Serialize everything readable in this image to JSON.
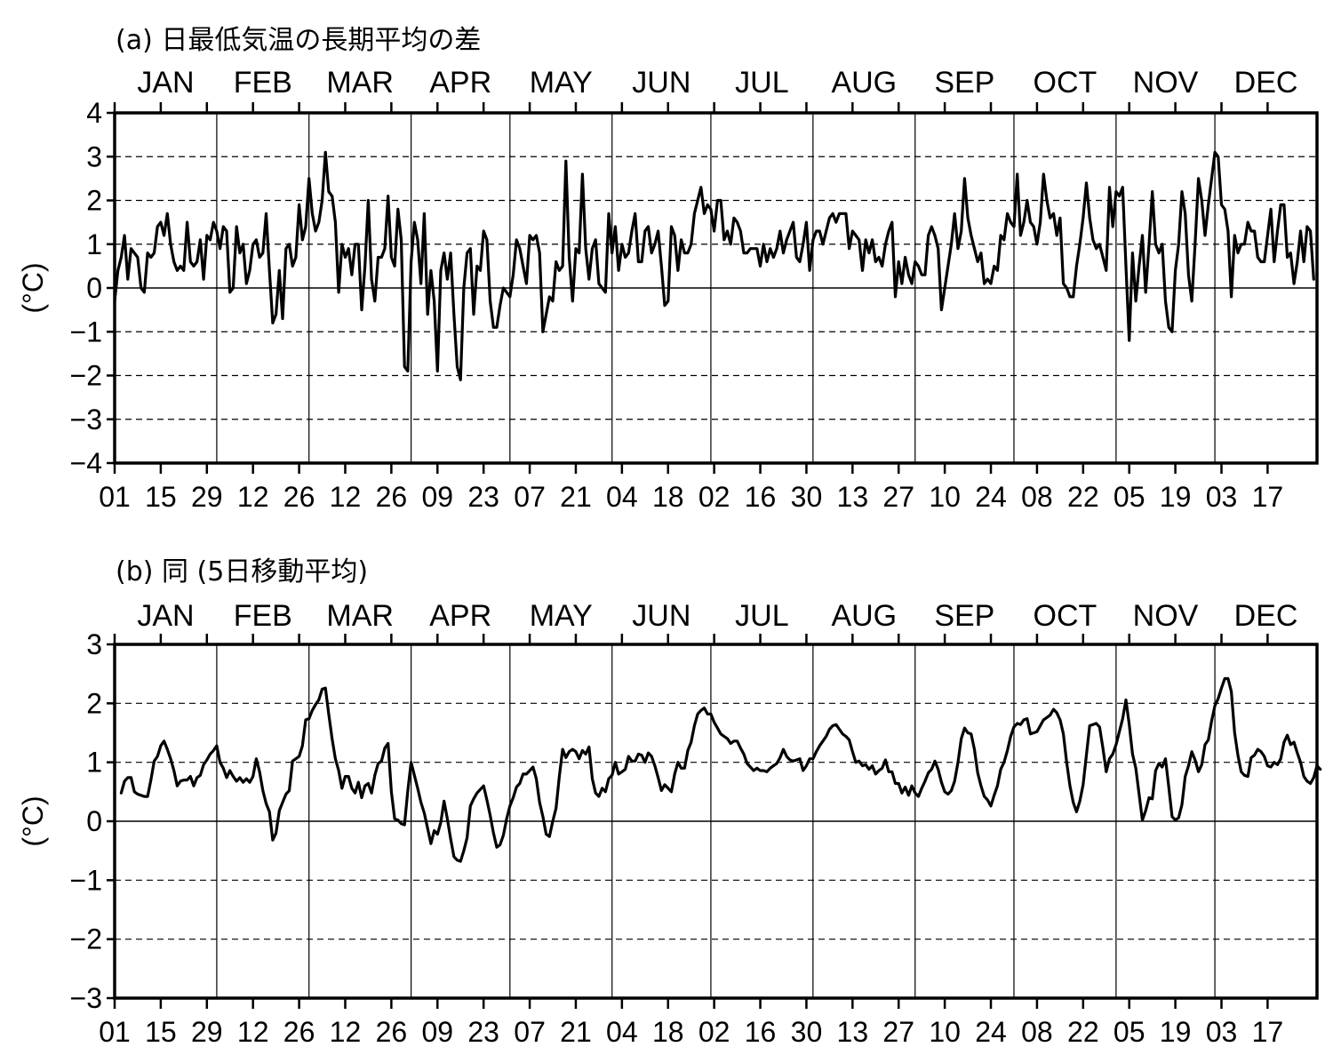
{
  "chart_data": [
    {
      "type": "line",
      "title": "(a) 日最低気温の長期平均の差",
      "ylabel": "(°C)",
      "ylim": [
        -4,
        4
      ],
      "yticks": [
        -4,
        -3,
        -2,
        -1,
        0,
        1,
        2,
        3,
        4
      ],
      "months": [
        "JAN",
        "FEB",
        "MAR",
        "APR",
        "MAY",
        "JUN",
        "JUL",
        "AUG",
        "SEP",
        "OCT",
        "NOV",
        "DEC"
      ],
      "xtick_labels": [
        "01",
        "15",
        "29",
        "12",
        "26",
        "12",
        "26",
        "09",
        "23",
        "07",
        "21",
        "04",
        "18",
        "02",
        "16",
        "30",
        "13",
        "27",
        "10",
        "24",
        "08",
        "22",
        "05",
        "19",
        "03",
        "17"
      ],
      "grid": "dashed horizontal lines, solid vertical month lines",
      "series": [
        {
          "values": [
            -0.3,
            0.4,
            0.7,
            1.2,
            0.2,
            0.9,
            0.8,
            0.7,
            0.0,
            -0.1,
            0.8,
            0.7,
            0.8,
            1.4,
            1.5,
            1.2,
            1.7,
            1.0,
            0.6,
            0.4,
            0.5,
            0.4,
            1.5,
            0.6,
            0.5,
            0.6,
            1.1,
            0.2,
            1.2,
            1.1,
            1.5,
            1.3,
            0.9,
            1.4,
            1.3,
            -0.1,
            0.0,
            1.4,
            0.8,
            1.0,
            0.1,
            0.4,
            1.0,
            1.1,
            0.7,
            0.8,
            1.7,
            0.4,
            -0.8,
            -0.6,
            0.4,
            -0.7,
            0.9,
            1.0,
            0.5,
            0.7,
            1.9,
            1.1,
            1.4,
            2.5,
            1.7,
            1.3,
            1.5,
            2.0,
            3.1,
            2.2,
            2.1,
            1.5,
            -0.1,
            1.0,
            0.7,
            0.9,
            0.3,
            1.0,
            1.0,
            -0.5,
            0.5,
            2.0,
            0.2,
            -0.3,
            0.7,
            0.7,
            0.9,
            2.1,
            0.7,
            0.5,
            1.8,
            1.1,
            -1.8,
            -1.9,
            0.6,
            1.5,
            1.1,
            0.1,
            1.7,
            -0.6,
            0.4,
            -0.3,
            -1.9,
            0.4,
            0.8,
            0.2,
            0.8,
            -0.6,
            -1.8,
            -2.1,
            0.0,
            0.8,
            0.9,
            -0.6,
            0.5,
            0.4,
            1.3,
            1.1,
            -0.3,
            -0.9,
            -0.9,
            -0.4,
            0.0,
            -0.1,
            -0.2,
            0.3,
            1.1,
            0.9,
            0.5,
            0.1,
            1.2,
            1.1,
            1.2,
            0.8,
            -1.0,
            -0.6,
            -0.2,
            -0.3,
            0.6,
            0.4,
            0.5,
            2.9,
            0.7,
            -0.3,
            0.9,
            0.8,
            2.6,
            0.9,
            0.2,
            0.9,
            1.1,
            0.1,
            0.0,
            -0.1,
            1.7,
            0.8,
            1.4,
            0.4,
            1.0,
            0.7,
            0.8,
            1.3,
            1.7,
            0.6,
            0.6,
            1.3,
            1.4,
            0.8,
            1.0,
            1.3,
            0.5,
            -0.4,
            -0.3,
            1.4,
            1.2,
            0.4,
            1.1,
            0.8,
            0.8,
            1.0,
            1.7,
            2.0,
            2.3,
            1.7,
            1.9,
            1.8,
            1.3,
            2.0,
            2.0,
            1.1,
            1.3,
            1.0,
            1.6,
            1.5,
            1.3,
            0.8,
            0.8,
            0.9,
            0.9,
            0.9,
            0.5,
            1.0,
            0.6,
            0.9,
            0.7,
            0.9,
            1.3,
            0.8,
            1.1,
            1.3,
            1.5,
            0.7,
            0.6,
            1.0,
            1.5,
            0.4,
            1.1,
            1.3,
            1.3,
            1.0,
            1.3,
            1.6,
            1.7,
            1.5,
            1.7,
            1.7,
            1.7,
            0.9,
            1.3,
            1.2,
            1.1,
            0.4,
            1.1,
            0.8,
            1.1,
            0.6,
            0.7,
            0.5,
            1.0,
            1.3,
            1.5,
            -0.2,
            0.6,
            0.1,
            0.7,
            0.3,
            0.1,
            0.6,
            0.5,
            0.3,
            0.3,
            1.2,
            1.4,
            1.2,
            0.9,
            -0.5,
            0.0,
            0.5,
            1.0,
            1.7,
            0.9,
            1.3,
            2.5,
            1.6,
            1.2,
            0.9,
            0.6,
            0.8,
            0.1,
            0.2,
            0.1,
            0.5,
            0.4,
            1.2,
            1.1,
            1.7,
            1.5,
            1.4,
            2.6,
            1.2,
            1.5,
            2.0,
            1.5,
            1.4,
            1.0,
            1.5,
            2.6,
            2.0,
            1.6,
            1.7,
            1.2,
            1.6,
            0.1,
            0.0,
            -0.2,
            -0.2,
            0.5,
            1.0,
            1.6,
            2.4,
            1.6,
            1.1,
            0.9,
            1.0,
            0.7,
            0.4,
            2.3,
            1.4,
            2.2,
            2.1,
            2.3,
            0.5,
            -1.2,
            0.8,
            -0.3,
            0.5,
            1.2,
            -0.1,
            1.0,
            2.2,
            1.0,
            0.8,
            1.0,
            -0.3,
            -0.9,
            -1.0,
            0.4,
            1.0,
            2.2,
            1.7,
            0.3,
            -0.3,
            1.0,
            2.5,
            2.0,
            1.2,
            1.9,
            2.5,
            3.1,
            3.0,
            1.9,
            1.8,
            1.3,
            -0.2,
            1.2,
            0.8,
            1.0,
            1.0,
            1.5,
            1.3,
            1.3,
            0.7,
            0.6,
            0.6,
            1.2,
            1.8,
            0.6,
            1.3,
            1.9,
            1.9,
            0.7,
            0.8,
            0.1,
            0.6,
            1.3,
            0.6,
            1.4,
            1.3,
            0.2
          ]
        }
      ]
    },
    {
      "type": "line",
      "title": "(b) 同 (5日移動平均)",
      "ylabel": "(°C)",
      "ylim": [
        -3,
        3
      ],
      "yticks": [
        -3,
        -2,
        -1,
        0,
        1,
        2,
        3
      ],
      "months": [
        "JAN",
        "FEB",
        "MAR",
        "APR",
        "MAY",
        "JUN",
        "JUL",
        "AUG",
        "SEP",
        "OCT",
        "NOV",
        "DEC"
      ],
      "xtick_labels": [
        "01",
        "15",
        "29",
        "12",
        "26",
        "12",
        "26",
        "09",
        "23",
        "07",
        "21",
        "04",
        "18",
        "02",
        "16",
        "30",
        "13",
        "27",
        "10",
        "24",
        "08",
        "22",
        "05",
        "19",
        "03",
        "17"
      ],
      "grid": "dashed horizontal lines, solid vertical month lines",
      "series": [
        {
          "values": [
            null,
            null,
            0.48,
            0.68,
            0.74,
            0.74,
            0.5,
            0.46,
            0.44,
            0.42,
            0.42,
            0.7,
            1.02,
            1.1,
            1.28,
            1.36,
            1.22,
            1.06,
            0.86,
            0.6,
            0.68,
            0.7,
            0.7,
            0.76,
            0.6,
            0.74,
            0.78,
            0.96,
            1.04,
            1.14,
            1.2,
            1.28,
            1.0,
            0.9,
            0.74,
            0.86,
            0.76,
            0.68,
            0.74,
            0.66,
            0.72,
            0.66,
            0.76,
            1.06,
            0.84,
            0.52,
            0.3,
            0.16,
            -0.32,
            -0.2,
            0.18,
            0.32,
            0.46,
            0.52,
            1.02,
            1.06,
            1.1,
            1.28,
            1.72,
            1.74,
            1.88,
            1.98,
            2.06,
            2.24,
            2.26,
            1.82,
            1.4,
            1.06,
            0.86,
            0.56,
            0.76,
            0.76,
            0.56,
            0.48,
            0.66,
            0.4,
            0.6,
            0.64,
            0.48,
            0.78,
            0.98,
            1.02,
            1.24,
            1.32,
            0.5,
            0.04,
            0.02,
            -0.04,
            -0.06,
            0.52,
            1.0,
            0.78,
            0.56,
            0.32,
            0.14,
            -0.12,
            -0.38,
            -0.16,
            -0.22,
            -0.02,
            0.34,
            0.04,
            -0.3,
            -0.6,
            -0.66,
            -0.68,
            -0.5,
            -0.28,
            0.26,
            0.38,
            0.48,
            0.54,
            0.6,
            0.36,
            0.1,
            -0.2,
            -0.44,
            -0.4,
            -0.24,
            0.04,
            0.26,
            0.4,
            0.58,
            0.64,
            0.8,
            0.8,
            0.86,
            0.92,
            0.72,
            0.32,
            0.08,
            -0.22,
            -0.26,
            0.0,
            0.22,
            0.76,
            1.22,
            1.08,
            1.18,
            1.22,
            1.18,
            1.06,
            1.2,
            1.14,
            1.26,
            0.72,
            0.48,
            0.42,
            0.56,
            0.5,
            0.72,
            0.78,
            1.0,
            0.8,
            0.84,
            0.88,
            1.1,
            1.02,
            1.02,
            1.14,
            1.12,
            1.0,
            1.16,
            1.1,
            0.94,
            0.74,
            0.52,
            0.62,
            0.56,
            0.5,
            0.8,
            1.0,
            0.9,
            0.9,
            1.2,
            1.34,
            1.62,
            1.82,
            1.88,
            1.92,
            1.82,
            1.82,
            1.68,
            1.58,
            1.48,
            1.44,
            1.4,
            1.32,
            1.36,
            1.36,
            1.24,
            1.14,
            0.98,
            0.92,
            0.86,
            0.9,
            0.86,
            0.86,
            0.84,
            0.9,
            0.94,
            0.98,
            1.08,
            1.22,
            1.1,
            1.04,
            1.02,
            1.04,
            1.06,
            0.86,
            0.94,
            1.06,
            1.06,
            1.18,
            1.28,
            1.36,
            1.44,
            1.56,
            1.62,
            1.64,
            1.56,
            1.48,
            1.44,
            1.38,
            1.18,
            1.0,
            1.02,
            0.94,
            0.96,
            0.88,
            0.94,
            0.8,
            0.86,
            0.9,
            1.04,
            0.84,
            0.84,
            0.64,
            0.64,
            0.48,
            0.58,
            0.44,
            0.6,
            0.48,
            0.42,
            0.56,
            0.68,
            0.82,
            0.88,
            1.02,
            0.88,
            0.66,
            0.5,
            0.46,
            0.52,
            0.68,
            1.0,
            1.4,
            1.58,
            1.5,
            1.48,
            1.22,
            0.82,
            0.6,
            0.42,
            0.36,
            0.26,
            0.44,
            0.6,
            0.88,
            1.0,
            1.2,
            1.44,
            1.6,
            1.66,
            1.64,
            1.72,
            1.74,
            1.48,
            1.5,
            1.52,
            1.62,
            1.72,
            1.76,
            1.8,
            1.9,
            1.84,
            1.72,
            1.48,
            1.0,
            0.6,
            0.32,
            0.16,
            0.34,
            0.62,
            1.12,
            1.62,
            1.64,
            1.66,
            1.6,
            1.24,
            0.84,
            1.06,
            1.14,
            1.3,
            1.52,
            1.74,
            2.06,
            1.64,
            1.14,
            0.9,
            0.46,
            0.02,
            0.18,
            0.4,
            0.38,
            0.86,
            0.98,
            0.92,
            1.06,
            0.58,
            0.08,
            0.02,
            0.06,
            0.28,
            0.76,
            0.94,
            1.18,
            1.04,
            0.84,
            0.96,
            1.3,
            1.38,
            1.7,
            1.96,
            2.08,
            2.26,
            2.42,
            2.42,
            2.2,
            1.5,
            1.12,
            0.84,
            0.78,
            0.76,
            1.08,
            1.12,
            1.22,
            1.18,
            1.1,
            0.94,
            0.92,
            1.0,
            0.96,
            1.06,
            1.34,
            1.46,
            1.3,
            1.34,
            1.16,
            1.0,
            0.76,
            0.68,
            0.64,
            0.74,
            0.94,
            0.88
          ]
        }
      ]
    }
  ]
}
